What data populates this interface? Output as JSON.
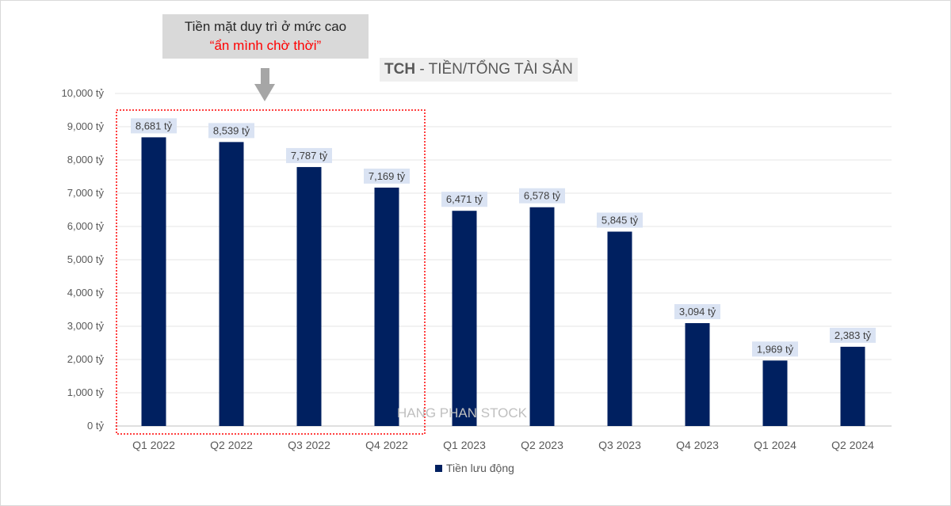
{
  "callout": {
    "line1": "Tiền mặt duy trì ở mức cao",
    "line2": "“ẩn mình chờ thời”",
    "line2_color": "#ff0000"
  },
  "title": {
    "ticker": "TCH",
    "rest": " - TIỀN/TỔNG TÀI SẢN"
  },
  "watermark": "HANG PHAN STOCK",
  "chart_data": {
    "type": "bar",
    "categories": [
      "Q1 2022",
      "Q2 2022",
      "Q3 2022",
      "Q4 2022",
      "Q1 2023",
      "Q2 2023",
      "Q3 2023",
      "Q4 2023",
      "Q1 2024",
      "Q2 2024"
    ],
    "series": [
      {
        "name": "Tiền lưu động",
        "values": [
          8681,
          8539,
          7787,
          7169,
          6471,
          6578,
          5845,
          3094,
          1969,
          2383
        ],
        "color": "#002060"
      }
    ],
    "data_labels": [
      "8,681 tỷ",
      "8,539 tỷ",
      "7,787 tỷ",
      "7,169 tỷ",
      "6,471 tỷ",
      "6,578 tỷ",
      "5,845 tỷ",
      "3,094 tỷ",
      "1,969 tỷ",
      "2,383 tỷ"
    ],
    "yticks": [
      0,
      1000,
      2000,
      3000,
      4000,
      5000,
      6000,
      7000,
      8000,
      9000,
      10000
    ],
    "ytick_labels": [
      "0 tỷ",
      "1,000 tỷ",
      "2,000 tỷ",
      "3,000 tỷ",
      "4,000 tỷ",
      "5,000 tỷ",
      "6,000 tỷ",
      "7,000 tỷ",
      "8,000 tỷ",
      "9,000 tỷ",
      "10,000 tỷ"
    ],
    "ylim": [
      0,
      10000
    ],
    "grid": true,
    "legend_position": "bottom",
    "highlight": {
      "from_category": "Q1 2022",
      "to_category": "Q4 2022",
      "style": "dotted",
      "color": "#ff0000"
    }
  }
}
